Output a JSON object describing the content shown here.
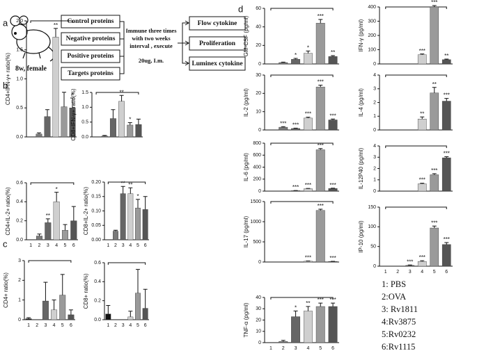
{
  "panel_labels": [
    "a",
    "b",
    "c",
    "d"
  ],
  "panel_a": {
    "mouse": "8w, female",
    "groups": [
      "Control proteins",
      "Negative proteins",
      "Positive proteins",
      "Targets proteins"
    ],
    "protocol": [
      "Immune three times",
      "with two weeks",
      "interval , execute"
    ],
    "dose": "20ug, I.m.",
    "assays": [
      "Flow cytokine",
      "Proliferation",
      "Luminex cytokine"
    ]
  },
  "legend": [
    "1: PBS",
    "2:OVA",
    "3: Rv1811",
    "4:Rv3875",
    "5:Rv0232",
    "6:Rv1115"
  ],
  "bar_colors": [
    "#111111",
    "#7a7a7a",
    "#666666",
    "#cfcfcf",
    "#9a9a9a",
    "#555555"
  ],
  "chart_data": [
    {
      "type": "bar",
      "ylabel": "CD4+IFN-γ+ ratio(%)",
      "values": [
        0,
        0.05,
        0.35,
        1.72,
        0.52,
        0.5
      ],
      "errors": [
        0,
        0.02,
        0.12,
        0.15,
        0.25,
        0.17
      ],
      "significance": [
        null,
        null,
        null,
        "**",
        null,
        "*"
      ],
      "ylim": [
        0,
        2.0
      ],
      "yticks": [
        {
          "value": 0,
          "label": "0.0"
        },
        {
          "value": 0.5,
          "label": "0.5"
        },
        {
          "value": 1,
          "label": "1.0"
        },
        {
          "value": 1.5,
          "label": "1.5"
        },
        {
          "value": 2,
          "label": "2.0"
        }
      ]
    },
    {
      "type": "bar",
      "ylabel": "CD8+IFN-γ+ ratio(%)",
      "values": [
        0,
        0.03,
        0.62,
        1.2,
        0.4,
        0.42
      ],
      "errors": [
        0,
        0.02,
        0.3,
        0.2,
        0.08,
        0.18
      ],
      "significance": [
        null,
        null,
        null,
        "**",
        "*",
        null
      ],
      "ylim": [
        0,
        1.5
      ],
      "yticks": [
        {
          "value": 0,
          "label": "0.0"
        },
        {
          "value": 0.5,
          "label": "0.5"
        },
        {
          "value": 1,
          "label": "1.0"
        },
        {
          "value": 1.5,
          "label": "1.5"
        }
      ]
    },
    {
      "type": "bar",
      "ylabel": "CD4+IL-2+ ratio(%)",
      "categories": [
        "1",
        "2",
        "3",
        "4",
        "5",
        "6"
      ],
      "values": [
        0,
        0.04,
        0.18,
        0.4,
        0.1,
        0.2
      ],
      "errors": [
        0,
        0.02,
        0.04,
        0.1,
        0.06,
        0.15
      ],
      "significance": [
        null,
        null,
        "**",
        "*",
        null,
        null
      ],
      "ylim": [
        0,
        0.6
      ],
      "yticks": [
        {
          "value": 0,
          "label": "0.0"
        },
        0.2,
        0.4,
        0.6
      ]
    },
    {
      "type": "bar",
      "ylabel": "CD8+IL-2+ ratio(%)",
      "categories": [
        "1",
        "2",
        "3",
        "4",
        "5",
        "6"
      ],
      "values": [
        0,
        0.03,
        0.16,
        0.16,
        0.11,
        0.105
      ],
      "errors": [
        0,
        0.003,
        0.025,
        0.02,
        0.03,
        0.045
      ],
      "significance": [
        null,
        null,
        "**",
        "**",
        "*",
        null
      ],
      "ylim": [
        0,
        0.2
      ],
      "yticks": [
        {
          "value": 0,
          "label": "0.00"
        },
        0.05,
        {
          "value": 0.1,
          "label": "0.10"
        },
        0.15,
        {
          "value": 0.2,
          "label": "0.20"
        }
      ]
    },
    {
      "type": "bar",
      "ylabel": "CD4+ ratio(%)",
      "categories": [
        "1",
        "2",
        "3",
        "4",
        "5",
        "6"
      ],
      "values": [
        0.05,
        0,
        0.95,
        0.5,
        1.25,
        0.25
      ],
      "errors": [
        0.05,
        0,
        0.95,
        0.5,
        1.05,
        0.25
      ],
      "significance": [
        null,
        null,
        null,
        null,
        null,
        null
      ],
      "ylim": [
        0,
        3
      ],
      "yticks": [
        0,
        1,
        2,
        3
      ]
    },
    {
      "type": "bar",
      "ylabel": "CD8+ ratio(%)",
      "categories": [
        "1",
        "2",
        "3",
        "4",
        "5",
        "6"
      ],
      "values": [
        0.06,
        0,
        0,
        0.03,
        0.28,
        0.12
      ],
      "errors": [
        0.09,
        0,
        0,
        0.06,
        0.25,
        0.2
      ],
      "significance": [
        null,
        null,
        null,
        null,
        null,
        null
      ],
      "ylim": [
        0,
        0.6
      ],
      "yticks": [
        {
          "value": 0,
          "label": "0.0"
        },
        0.2,
        0.4,
        0.6
      ]
    },
    {
      "type": "bar",
      "ylabel": "GM-CSF  (pg/ml)",
      "values": [
        0,
        1.5,
        5,
        11.5,
        44,
        8
      ],
      "errors": [
        0,
        0.5,
        1,
        2.5,
        4,
        1
      ],
      "significance": [
        null,
        null,
        "*",
        "*",
        "***",
        "**"
      ],
      "ylim": [
        0,
        60
      ],
      "yticks": [
        0,
        20,
        40,
        60
      ]
    },
    {
      "type": "bar",
      "ylabel": "IFN-γ  (pg/ml)",
      "values": [
        0,
        0,
        0,
        65,
        400,
        30
      ],
      "errors": [
        0,
        0,
        0,
        5,
        10,
        4
      ],
      "significance": [
        null,
        null,
        null,
        "***",
        "***",
        "**"
      ],
      "ylim": [
        0,
        400
      ],
      "yticks": [
        0,
        100,
        200,
        300,
        400
      ]
    },
    {
      "type": "bar",
      "ylabel": "IL-2  (pg/ml)",
      "values": [
        0,
        1.5,
        0.8,
        6.5,
        23.5,
        5.5
      ],
      "errors": [
        0,
        0.3,
        0.2,
        0.5,
        1,
        0.5
      ],
      "significance": [
        null,
        "***",
        "***",
        "***",
        "***",
        "***"
      ],
      "ylim": [
        0,
        30
      ],
      "yticks": [
        0,
        10,
        20,
        30
      ]
    },
    {
      "type": "bar",
      "ylabel": "IL-4  (pg/ml)",
      "values": [
        0,
        0,
        0,
        0.8,
        2.7,
        2.1
      ],
      "errors": [
        0,
        0,
        0,
        0.15,
        0.4,
        0.2
      ],
      "significance": [
        null,
        null,
        null,
        "**",
        "**",
        "***"
      ],
      "ylim": [
        0,
        4
      ],
      "yticks": [
        0,
        1,
        2,
        3,
        4
      ]
    },
    {
      "type": "bar",
      "ylabel": "IL-6  (pg/ml)",
      "values": [
        0,
        0,
        8,
        40,
        690,
        45
      ],
      "errors": [
        0,
        0,
        2,
        5,
        20,
        5
      ],
      "significance": [
        null,
        null,
        "***",
        "***",
        "***",
        "***"
      ],
      "ylim": [
        0,
        800
      ],
      "yticks": [
        0,
        200,
        400,
        600,
        800
      ]
    },
    {
      "type": "bar",
      "ylabel": "IL-12P40  (pg/ml)",
      "values": [
        0,
        0,
        0,
        0.65,
        1.45,
        2.95
      ],
      "errors": [
        0,
        0,
        0,
        0.05,
        0.1,
        0.1
      ],
      "significance": [
        null,
        null,
        null,
        "***",
        "***",
        "***"
      ],
      "ylim": [
        0,
        4
      ],
      "yticks": [
        0,
        1,
        2,
        3,
        4
      ]
    },
    {
      "type": "bar",
      "ylabel": "IL-17  (pg/ml)",
      "values": [
        0,
        0,
        0,
        20,
        1280,
        15
      ],
      "errors": [
        0,
        0,
        0,
        5,
        30,
        3
      ],
      "significance": [
        null,
        null,
        null,
        "***",
        "***",
        "***"
      ],
      "ylim": [
        0,
        1500
      ],
      "yticks": [
        0,
        500,
        1000,
        1500
      ]
    },
    {
      "type": "bar",
      "ylabel": "IP-10  (pg/ml)",
      "categories": [
        "1",
        "2",
        "3",
        "4",
        "5",
        "6"
      ],
      "values": [
        0,
        0,
        2,
        12,
        97,
        55
      ],
      "errors": [
        0,
        0,
        1,
        2,
        5,
        5
      ],
      "significance": [
        null,
        null,
        "***",
        "***",
        "***",
        "***"
      ],
      "ylim": [
        0,
        150
      ],
      "yticks": [
        0,
        50,
        100,
        150
      ]
    },
    {
      "type": "bar",
      "ylabel": "TNF-α  (pg/ml)",
      "categories": [
        "1",
        "2",
        "3",
        "4",
        "5",
        "6"
      ],
      "values": [
        0,
        1,
        23,
        28,
        32,
        32
      ],
      "errors": [
        0,
        1,
        5,
        4,
        3,
        3
      ],
      "significance": [
        null,
        null,
        "*",
        "**",
        "***",
        "***"
      ],
      "ylim": [
        0,
        40
      ],
      "yticks": [
        0,
        10,
        20,
        30,
        40
      ]
    }
  ]
}
